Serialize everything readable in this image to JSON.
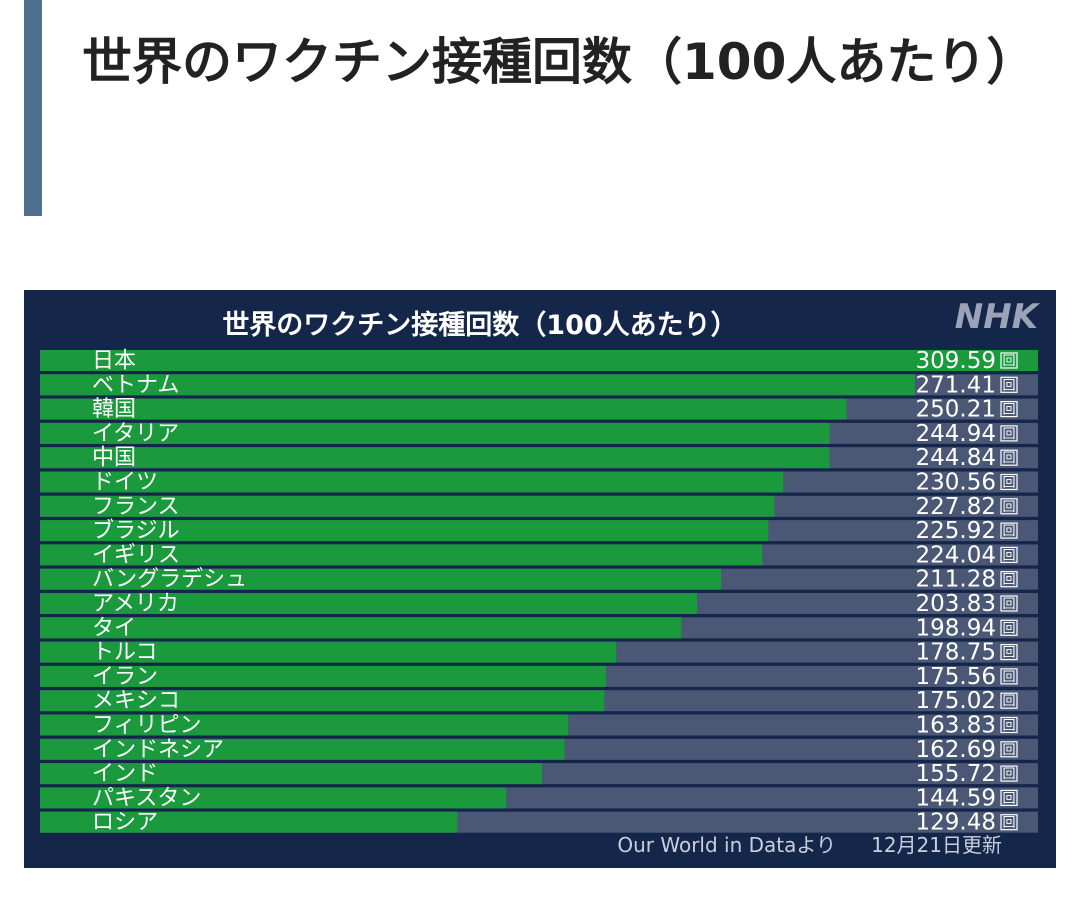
{
  "header": {
    "title": "世界のワクチン接種回数（100人あたり）"
  },
  "chart_data": {
    "type": "bar",
    "orientation": "horizontal",
    "title": "世界のワクチン接種回数（100人あたり）",
    "logo": "NHK",
    "categories": [
      "日本",
      "ベトナム",
      "韓国",
      "イタリア",
      "中国",
      "ドイツ",
      "フランス",
      "ブラジル",
      "イギリス",
      "バングラデシュ",
      "アメリカ",
      "タイ",
      "トルコ",
      "イラン",
      "メキシコ",
      "フィリピン",
      "インドネシア",
      "インド",
      "パキスタン",
      "ロシア"
    ],
    "values": [
      309.59,
      271.41,
      250.21,
      244.94,
      244.84,
      230.56,
      227.82,
      225.92,
      224.04,
      211.28,
      203.83,
      198.94,
      178.75,
      175.56,
      175.02,
      163.83,
      162.69,
      155.72,
      144.59,
      129.48
    ],
    "unit": "回",
    "color": "#1a9a3c",
    "track_color": "#4a5876",
    "xlim": [
      0,
      309.59
    ],
    "source": "Our World in Dataより",
    "updated": "12月21日更新"
  }
}
